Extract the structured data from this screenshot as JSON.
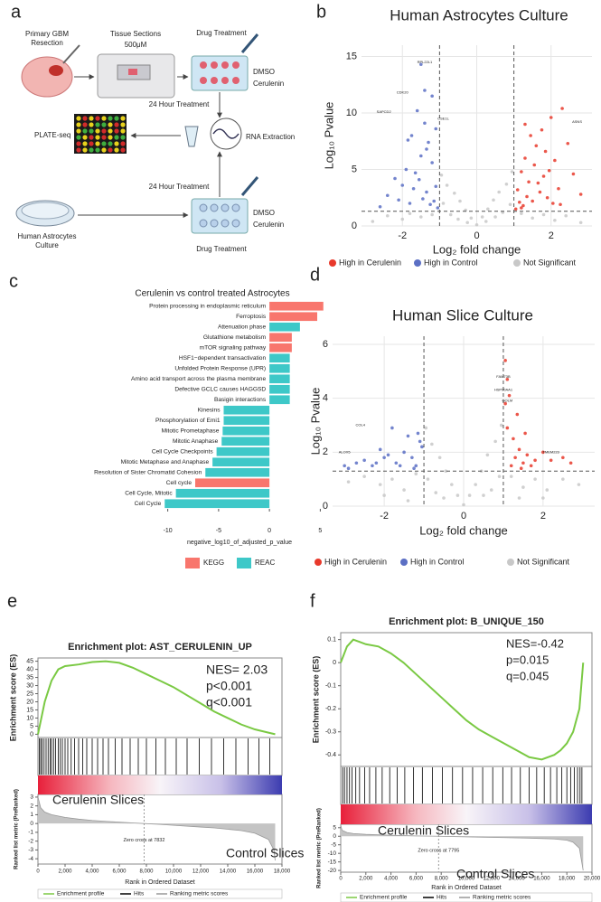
{
  "panel_labels": [
    "a",
    "b",
    "c",
    "d",
    "e",
    "f"
  ],
  "diagram": {
    "resection": [
      "Primary GBM",
      "Resection"
    ],
    "sections": [
      "Tissue Sections",
      "500μM"
    ],
    "drug_top": "Drug Treatment",
    "dmso_top": "DMSO",
    "cerulenin_top": "Cerulenin",
    "treatment_top": "24 Hour Treatment",
    "extraction": "RNA Extraction",
    "plate": "PLATE-seq",
    "treatment_bottom": "24 Hour Treatment",
    "dmso_bottom": "DMSO",
    "cerulenin_bottom": "Cerulenin",
    "culture": [
      "Human Astrocytes",
      "Culture"
    ],
    "drug_bottom": "Drug Treatment"
  },
  "chart_data": [
    {
      "type": "scatter",
      "title": "Human Astrocytes Culture",
      "xlabel": "Log₂ fold change",
      "ylabel": "Log₁₀ Pvalue",
      "xlim": [
        -3.1,
        3.1
      ],
      "ylim": [
        0,
        16
      ],
      "xticks": [
        -2,
        0,
        2
      ],
      "yticks": [
        0,
        5,
        10,
        15
      ],
      "grid": true,
      "vlines": [
        -1,
        1
      ],
      "hline": 1.3,
      "legend": "bottom",
      "series": [
        {
          "name": "High in Cerulenin",
          "color": "#e8392b",
          "x": [
            1.05,
            1.1,
            1.15,
            1.2,
            1.25,
            1.3,
            1.35,
            1.4,
            1.5,
            1.55,
            1.6,
            1.7,
            1.75,
            1.8,
            1.9,
            2.0,
            2.1,
            2.2,
            2.3,
            2.45,
            2.6,
            2.8,
            1.2,
            1.45,
            1.65,
            1.85,
            2.05,
            1.3,
            1.95,
            2.25
          ],
          "y": [
            1.5,
            3.2,
            2.1,
            4.8,
            1.8,
            6.0,
            2.6,
            3.9,
            2.2,
            5.4,
            7.1,
            3.0,
            8.5,
            4.4,
            2.5,
            9.6,
            5.8,
            3.3,
            10.4,
            7.3,
            4.6,
            2.8,
            1.6,
            8.0,
            3.8,
            6.6,
            2.0,
            9.0,
            4.9,
            1.9
          ]
        },
        {
          "name": "High in Control",
          "color": "#5b6fc4",
          "x": [
            -1.05,
            -1.1,
            -1.15,
            -1.2,
            -1.25,
            -1.3,
            -1.35,
            -1.4,
            -1.45,
            -1.5,
            -1.55,
            -1.6,
            -1.7,
            -1.75,
            -1.8,
            -1.9,
            -2.0,
            -2.1,
            -2.2,
            -2.4,
            -2.6,
            -1.2,
            -1.35,
            -1.5,
            -1.65,
            -1.85,
            -1.4,
            -1.1
          ],
          "y": [
            1.6,
            3.5,
            2.2,
            5.6,
            1.9,
            7.4,
            3.0,
            9.1,
            2.4,
            6.2,
            4.1,
            10.2,
            3.3,
            8.0,
            2.0,
            5.0,
            3.6,
            2.3,
            4.2,
            2.7,
            1.7,
            11.5,
            6.8,
            14.3,
            4.7,
            7.6,
            12.0,
            8.6
          ]
        },
        {
          "name": "Not Significant",
          "color": "#c8c8c8",
          "x": [
            -2.8,
            -2.4,
            -2.0,
            -1.8,
            -1.5,
            -1.2,
            -0.95,
            -0.8,
            -0.6,
            -0.45,
            -0.3,
            -0.15,
            0,
            0.15,
            0.3,
            0.45,
            0.6,
            0.8,
            0.95,
            1.2,
            1.5,
            1.8,
            2.1,
            2.4,
            2.8,
            -0.7,
            -0.5,
            0.5,
            0.7,
            -0.9,
            0.9,
            -0.25,
            0.25
          ],
          "y": [
            0.4,
            0.9,
            0.6,
            1.1,
            0.8,
            1.0,
            4.5,
            3.6,
            2.9,
            2.2,
            1.4,
            0.7,
            0.1,
            0.8,
            1.5,
            2.3,
            3.0,
            3.7,
            4.8,
            1.1,
            0.7,
            1.0,
            0.5,
            0.9,
            0.3,
            1.0,
            0.6,
            0.8,
            1.2,
            2.0,
            1.9,
            0.3,
            0.4
          ]
        }
      ],
      "annotations": [
        {
          "text": "RPL22L1",
          "x": -1.4,
          "y": 14.5
        },
        {
          "text": "CDK20",
          "x": -2.0,
          "y": 11.8
        },
        {
          "text": "SAPCD2",
          "x": -2.5,
          "y": 10.1
        },
        {
          "text": "CSE1L",
          "x": -0.9,
          "y": 9.5
        },
        {
          "text": "ASNS",
          "x": 2.7,
          "y": 9.2
        }
      ]
    },
    {
      "type": "barh",
      "title": "Cerulenin vs control treated Astrocytes",
      "xlabel": "negative_log10_of_adjusted_p_value",
      "xlim": [
        -10.5,
        5.5
      ],
      "xticks": [
        -10,
        -5,
        0,
        5
      ],
      "categories": [
        "Protein processing in endoplasmic reticulum",
        "Ferroptosis",
        "Attenuation phase",
        "Glutathione metabolism",
        "mTOR signaling pathway",
        "HSF1−dependent transactivation",
        "Unfolded Protein Response (UPR)",
        "Amino acid transport across the plasma membrane",
        "Defective GCLC causes HAGGSD",
        "Basigin interactions",
        "Kinesins",
        "Phosphorylation of Emi1",
        "Mitotic Prometaphase",
        "Mitotic Anaphase",
        "Cell Cycle Checkpoints",
        "Mitotic Metaphase and Anaphase",
        "Resolution of Sister Chromatid Cohesion",
        "Cell cycle",
        "Cell Cycle, Mitotic",
        "Cell Cycle"
      ],
      "values": [
        5.3,
        4.7,
        3.0,
        2.2,
        2.2,
        2.0,
        2.0,
        2.0,
        2.0,
        2.0,
        -4.5,
        -4.5,
        -4.6,
        -4.7,
        -5.2,
        -5.6,
        -6.3,
        -7.3,
        -9.2,
        -10.3
      ],
      "sources": [
        "KEGG",
        "KEGG",
        "REAC",
        "KEGG",
        "KEGG",
        "REAC",
        "REAC",
        "REAC",
        "REAC",
        "REAC",
        "REAC",
        "REAC",
        "REAC",
        "REAC",
        "REAC",
        "REAC",
        "REAC",
        "KEGG",
        "REAC",
        "REAC"
      ],
      "legend": [
        {
          "name": "KEGG",
          "color": "#f8766d"
        },
        {
          "name": "REAC",
          "color": "#3ec8c8"
        }
      ]
    },
    {
      "type": "scatter",
      "title": "Human Slice Culture",
      "xlabel": "Log₂ fold change",
      "ylabel": "Log₁₀ Pvalue",
      "xlim": [
        -3.3,
        3.3
      ],
      "ylim": [
        0,
        6.3
      ],
      "xticks": [
        -2,
        0,
        2
      ],
      "yticks": [
        0,
        2,
        4,
        6
      ],
      "grid": true,
      "vlines": [
        -1,
        1
      ],
      "hline": 1.3,
      "legend": "bottom",
      "series": [
        {
          "name": "High in Cerulenin",
          "color": "#e8392b",
          "x": [
            1.05,
            1.1,
            1.2,
            1.3,
            1.4,
            1.5,
            1.6,
            1.7,
            1.8,
            2.0,
            2.2,
            2.5,
            2.7,
            1.15,
            1.35,
            1.55,
            1.25,
            1.45,
            1.05,
            1.1
          ],
          "y": [
            5.4,
            4.7,
            1.5,
            1.8,
            2.1,
            1.6,
            1.9,
            1.5,
            1.7,
            2.0,
            1.7,
            1.8,
            1.6,
            4.1,
            3.4,
            2.7,
            2.5,
            1.4,
            3.8,
            2.9
          ]
        },
        {
          "name": "High in Control",
          "color": "#5b6fc4",
          "x": [
            -1.1,
            -1.2,
            -1.3,
            -1.5,
            -1.7,
            -1.9,
            -2.1,
            -2.3,
            -2.5,
            -2.7,
            -2.9,
            -1.4,
            -1.6,
            -1.8,
            -2.0,
            -2.2,
            -1.05,
            -1.15,
            -1.25,
            -3.0
          ],
          "y": [
            2.4,
            1.5,
            1.8,
            2.0,
            1.6,
            1.9,
            2.1,
            1.5,
            1.7,
            1.6,
            1.4,
            2.6,
            1.5,
            2.9,
            1.8,
            1.6,
            2.2,
            2.7,
            1.4,
            1.5
          ]
        },
        {
          "name": "Not Significant",
          "color": "#c8c8c8",
          "x": [
            -2.9,
            -2.5,
            -2.1,
            -1.8,
            -1.5,
            -1.2,
            -0.95,
            -0.8,
            -0.6,
            -0.45,
            -0.3,
            -0.15,
            0,
            0.15,
            0.3,
            0.45,
            0.6,
            0.8,
            0.95,
            1.2,
            1.5,
            1.8,
            2.1,
            2.5,
            2.9,
            -0.7,
            -0.5,
            0.5,
            0.7,
            -0.9,
            0.9,
            -2.0,
            2.0,
            -1.4,
            1.4
          ],
          "y": [
            0.9,
            1.1,
            0.8,
            1.0,
            0.6,
            1.2,
            2.9,
            2.3,
            1.8,
            1.3,
            0.8,
            0.4,
            0.05,
            0.4,
            0.8,
            1.3,
            1.9,
            2.4,
            3.0,
            1.1,
            0.7,
            1.0,
            0.6,
            1.0,
            0.8,
            0.5,
            0.3,
            0.4,
            0.6,
            1.0,
            1.1,
            0.4,
            0.3,
            0.2,
            0.3
          ]
        }
      ],
      "annotations": [
        {
          "text": "FAM73B",
          "x": 1.0,
          "y": 4.8
        },
        {
          "text": "HSP90AA1",
          "x": 1.0,
          "y": 4.3
        },
        {
          "text": "GOLM",
          "x": 1.1,
          "y": 3.9
        },
        {
          "text": "TMEM223",
          "x": 2.2,
          "y": 2.0
        },
        {
          "text": "ALOX5",
          "x": -3.0,
          "y": 2.0
        },
        {
          "text": "COL4",
          "x": -2.6,
          "y": 3.0
        }
      ]
    },
    {
      "type": "line",
      "title": "Enrichment plot: AST_CERULENIN_UP",
      "ylabel": "Enrichment score (ES)",
      "y2label": "Ranked list metric (PreRanked)",
      "xlabel": "Rank in Ordered Dataset",
      "stats": [
        "NES= 2.03",
        "p<0.001",
        "q<0.001"
      ],
      "high_label": "Cerulenin Slices",
      "low_label": "Control Slices",
      "series": [
        {
          "name": "Enrichment profile",
          "color": "#7ac943",
          "x": [
            0,
            500,
            1000,
            1500,
            2000,
            3000,
            4000,
            5000,
            6000,
            7000,
            8000,
            9000,
            10000,
            11000,
            12000,
            13000,
            14000,
            15000,
            16000,
            17000,
            17500
          ],
          "values": [
            0,
            20,
            33,
            40,
            42,
            43,
            44.5,
            45,
            44,
            41,
            37,
            33,
            29,
            24,
            19,
            14,
            10,
            6,
            3,
            1,
            0
          ]
        },
        {
          "name": "Ranking metric scores",
          "color": "#999999",
          "axis": "y2",
          "x": [
            0,
            200,
            500,
            1000,
            2000,
            3000,
            4000,
            5000,
            6000,
            7000,
            7832,
            9000,
            10000,
            11000,
            12000,
            13000,
            14000,
            15000,
            16000,
            17000,
            17400,
            17500
          ],
          "values": [
            3,
            1.8,
            1.3,
            1.0,
            0.7,
            0.5,
            0.35,
            0.25,
            0.15,
            0.07,
            0,
            -0.1,
            -0.2,
            -0.3,
            -0.4,
            -0.5,
            -0.65,
            -0.8,
            -1.1,
            -1.8,
            -3.0,
            -4.2
          ]
        }
      ],
      "hits": {
        "name": "Hits",
        "color": "#000000",
        "x": [
          100,
          200,
          300,
          450,
          600,
          750,
          900,
          1000,
          1150,
          1300,
          1500,
          1650,
          1800,
          2000,
          2200,
          2450,
          2700,
          3000,
          3300,
          3600,
          4000,
          4400,
          4800,
          5200,
          5700,
          6200,
          6800,
          7400,
          8000,
          8700,
          9400,
          10200,
          11000,
          11900,
          12800,
          13700,
          14600,
          15500,
          16300,
          17100
        ]
      },
      "zero_cross": {
        "value": 7832,
        "label": "Zero cross at 7832"
      },
      "xlim": [
        0,
        18000
      ],
      "xticks": [
        0,
        {
          "value": 2000,
          "label": "2,000"
        },
        {
          "value": 4000,
          "label": "4,000"
        },
        {
          "value": 6000,
          "label": "6,000"
        },
        {
          "value": 8000,
          "label": "8,000"
        },
        {
          "value": 10000,
          "label": "10,000"
        },
        {
          "value": 12000,
          "label": "12,000"
        },
        {
          "value": 14000,
          "label": "14,000"
        },
        {
          "value": 16000,
          "label": "16,000"
        },
        {
          "value": 18000,
          "label": "18,000"
        }
      ],
      "ylim": [
        -2,
        47
      ],
      "yticks": [
        0,
        5,
        10,
        15,
        20,
        25,
        30,
        35,
        40,
        45
      ],
      "y2lim": [
        -4.6,
        3.3
      ],
      "y2ticks": [
        3,
        2,
        1,
        0,
        -1,
        -2,
        -3,
        -4
      ]
    },
    {
      "type": "line",
      "title": "Enrichment plot: B_UNIQUE_150",
      "ylabel": "Enrichment score (ES)",
      "y2label": "Ranked list metric (PreRanked)",
      "xlabel": "Rank in Ordered Dataset",
      "stats": [
        "NES=-0.42",
        "p=0.015",
        "q=0.045"
      ],
      "high_label": "Cerulenin Slices",
      "low_label": "Control Slices",
      "series": [
        {
          "name": "Enrichment profile",
          "color": "#7ac943",
          "x": [
            0,
            500,
            1000,
            1500,
            2000,
            3000,
            4000,
            5000,
            6000,
            7000,
            8000,
            9000,
            10000,
            11000,
            12000,
            13000,
            14000,
            15000,
            16000,
            17000,
            17500,
            18000,
            18500,
            19000,
            19300
          ],
          "values": [
            0,
            0.07,
            0.1,
            0.09,
            0.08,
            0.07,
            0.04,
            0,
            -0.05,
            -0.1,
            -0.15,
            -0.2,
            -0.25,
            -0.29,
            -0.32,
            -0.35,
            -0.38,
            -0.41,
            -0.42,
            -0.4,
            -0.38,
            -0.35,
            -0.3,
            -0.2,
            0
          ]
        },
        {
          "name": "Ranking metric scores",
          "color": "#999999",
          "axis": "y2",
          "x": [
            0,
            100,
            500,
            1000,
            2000,
            4000,
            6000,
            7795,
            9000,
            11000,
            13000,
            15000,
            17000,
            18000,
            18500,
            19000,
            19300
          ],
          "values": [
            6.5,
            3.5,
            2.2,
            1.6,
            1.1,
            0.6,
            0.2,
            0,
            -0.2,
            -0.5,
            -0.8,
            -1.1,
            -1.6,
            -2.3,
            -3.5,
            -7,
            -20
          ]
        }
      ],
      "hits": {
        "name": "Hits",
        "color": "#000000",
        "x": [
          150,
          300,
          500,
          700,
          900,
          1200,
          1500,
          1900,
          2300,
          2800,
          3300,
          3900,
          4500,
          5100,
          5800,
          6500,
          7300,
          8100,
          8900,
          9700,
          10500,
          11300,
          12100,
          12900,
          13600,
          14300,
          15000,
          15600,
          16200,
          16700,
          17200,
          17600,
          18000,
          18300,
          18600,
          18850,
          19050,
          19200
        ]
      },
      "zero_cross": {
        "value": 7795,
        "label": "Zero cross at 7795"
      },
      "xlim": [
        0,
        20000
      ],
      "xticks": [
        0,
        {
          "value": 2000,
          "label": "2,000"
        },
        {
          "value": 4000,
          "label": "4,000"
        },
        {
          "value": 6000,
          "label": "6,000"
        },
        {
          "value": 8000,
          "label": "8,000"
        },
        {
          "value": 10000,
          "label": "10,000"
        },
        {
          "value": 12000,
          "label": "12,000"
        },
        {
          "value": 14000,
          "label": "14,000"
        },
        {
          "value": 16000,
          "label": "16,000"
        },
        {
          "value": 18000,
          "label": "18,000"
        },
        {
          "value": 20000,
          "label": "20,000"
        }
      ],
      "ylim": [
        -0.45,
        0.13
      ],
      "yticks": [
        0.1,
        0,
        -0.1,
        -0.2,
        -0.3,
        -0.4
      ],
      "y2lim": [
        -21,
        7
      ],
      "y2ticks": [
        5,
        0,
        -5,
        -10,
        -15,
        -20
      ]
    }
  ]
}
